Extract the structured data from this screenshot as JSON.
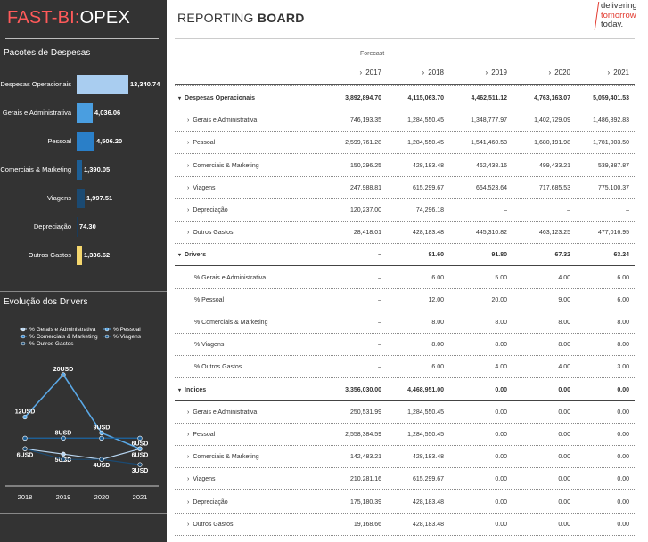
{
  "brand": {
    "part1": "FAST-BI:",
    "part2": "OPEX"
  },
  "sidebar": {
    "section1_title": "Pacotes de Despesas",
    "section2_title": "Evolução dos Drivers"
  },
  "bars": [
    {
      "label": "Despesas Operacionais",
      "value": "13,340.74",
      "amount": 13340.74,
      "color": "#a9cdf0"
    },
    {
      "label": "Gerais e Administrativa",
      "value": "4,036.06",
      "amount": 4036.06,
      "color": "#4a9ee0"
    },
    {
      "label": "Pessoal",
      "value": "4,506.20",
      "amount": 4506.2,
      "color": "#2a7fc8"
    },
    {
      "label": "Comerciais & Marketing",
      "value": "1,390.05",
      "amount": 1390.05,
      "color": "#1d5f96"
    },
    {
      "label": "Viagens",
      "value": "1,997.51",
      "amount": 1997.51,
      "color": "#1b4a72"
    },
    {
      "label": "Depreciação",
      "value": "74.30",
      "amount": 74.3,
      "color": "#1a3a58"
    },
    {
      "label": "Outros Gastos",
      "value": "1,336.62",
      "amount": 1336.62,
      "color": "#f5d76e"
    }
  ],
  "chart_data": {
    "type": "line",
    "categories": [
      "2018",
      "2019",
      "2020",
      "2021"
    ],
    "series": [
      {
        "name": "% Gerais e Administrativa",
        "values": [
          6,
          5,
          4,
          6
        ],
        "labels": [
          "6USD",
          "5USD",
          "4USD",
          "6USD"
        ],
        "color": "#b8d6f2"
      },
      {
        "name": "% Pessoal",
        "values": [
          12,
          20,
          9,
          6
        ],
        "labels": [
          "12USD",
          "20USD",
          "9USD",
          "6USD"
        ],
        "color": "#5aa8e6"
      },
      {
        "name": "% Comerciais & Marketing",
        "values": [
          8,
          8,
          8,
          8
        ],
        "labels": [
          "",
          "8USD",
          "",
          ""
        ],
        "color": "#2a7fc8"
      },
      {
        "name": "% Viagens",
        "values": [
          8,
          8,
          8,
          8
        ],
        "labels": [
          "",
          "",
          "",
          ""
        ],
        "color": "#1d5f96"
      },
      {
        "name": "% Outros Gastos",
        "values": [
          6,
          4,
          4,
          3
        ],
        "labels": [
          "",
          "",
          "",
          "3USD"
        ],
        "color": "#1b4a72"
      }
    ]
  },
  "report": {
    "title_part1": "REPORTING ",
    "title_part2": "BOARD"
  },
  "logo": {
    "line1": "delivering",
    "line2": "tomorrow",
    "line3": "today."
  },
  "table": {
    "forecast_label": "Forecast",
    "years": [
      "2017",
      "2018",
      "2019",
      "2020",
      "2021"
    ],
    "rows": [
      {
        "type": "group",
        "label": "Despesas Operacionais",
        "values": [
          "3,892,894.70",
          "4,115,063.70",
          "4,462,511.12",
          "4,763,163.07",
          "5,059,401.53"
        ]
      },
      {
        "type": "item",
        "label": "Gerais e Administrativa",
        "values": [
          "746,193.35",
          "1,284,550.45",
          "1,348,777.97",
          "1,402,729.09",
          "1,486,892.83"
        ]
      },
      {
        "type": "item",
        "label": "Pessoal",
        "values": [
          "2,599,761.28",
          "1,284,550.45",
          "1,541,460.53",
          "1,680,191.98",
          "1,781,003.50"
        ]
      },
      {
        "type": "item",
        "label": "Comerciais & Marketing",
        "values": [
          "150,296.25",
          "428,183.48",
          "462,438.16",
          "499,433.21",
          "539,387.87"
        ]
      },
      {
        "type": "item",
        "label": "Viagens",
        "values": [
          "247,988.81",
          "615,299.67",
          "664,523.64",
          "717,685.53",
          "775,100.37"
        ]
      },
      {
        "type": "item",
        "label": "Depreciação",
        "values": [
          "120,237.00",
          "74,296.18",
          "–",
          "–",
          "–"
        ]
      },
      {
        "type": "item",
        "label": "Outros Gastos",
        "values": [
          "28,418.01",
          "428,183.48",
          "445,310.82",
          "463,123.25",
          "477,016.95"
        ]
      },
      {
        "type": "group",
        "label": "Drivers",
        "values": [
          "–",
          "81.60",
          "91.80",
          "67.32",
          "63.24"
        ]
      },
      {
        "type": "plain",
        "label": "% Gerais e Administrativa",
        "values": [
          "–",
          "6.00",
          "5.00",
          "4.00",
          "6.00"
        ]
      },
      {
        "type": "plain",
        "label": "% Pessoal",
        "values": [
          "–",
          "12.00",
          "20.00",
          "9.00",
          "6.00"
        ]
      },
      {
        "type": "plain",
        "label": "% Comerciais & Marketing",
        "values": [
          "–",
          "8.00",
          "8.00",
          "8.00",
          "8.00"
        ]
      },
      {
        "type": "plain",
        "label": "% Viagens",
        "values": [
          "–",
          "8.00",
          "8.00",
          "8.00",
          "8.00"
        ]
      },
      {
        "type": "plain",
        "label": "% Outros Gastos",
        "values": [
          "–",
          "6.00",
          "4.00",
          "4.00",
          "3.00"
        ]
      },
      {
        "type": "group",
        "label": "Indices",
        "values": [
          "3,356,030.00",
          "4,468,951.00",
          "0.00",
          "0.00",
          "0.00"
        ]
      },
      {
        "type": "item",
        "label": "Gerais e Administrativa",
        "values": [
          "250,531.99",
          "1,284,550.45",
          "0.00",
          "0.00",
          "0.00"
        ]
      },
      {
        "type": "item",
        "label": "Pessoal",
        "values": [
          "2,558,384.59",
          "1,284,550.45",
          "0.00",
          "0.00",
          "0.00"
        ]
      },
      {
        "type": "item",
        "label": "Comerciais & Marketing",
        "values": [
          "142,483.21",
          "428,183.48",
          "0.00",
          "0.00",
          "0.00"
        ]
      },
      {
        "type": "item",
        "label": "Viagens",
        "values": [
          "210,281.16",
          "615,299.67",
          "0.00",
          "0.00",
          "0.00"
        ]
      },
      {
        "type": "item",
        "label": "Depreciação",
        "values": [
          "175,180.39",
          "428,183.48",
          "0.00",
          "0.00",
          "0.00"
        ]
      },
      {
        "type": "item",
        "label": "Outros Gastos",
        "values": [
          "19,168.66",
          "428,183.48",
          "0.00",
          "0.00",
          "0.00"
        ]
      }
    ]
  },
  "icons": {
    "row_expand": "chevron-right-icon",
    "row_collapse": "chevron-down-icon",
    "legend_marker": "circle-marker-icon"
  }
}
